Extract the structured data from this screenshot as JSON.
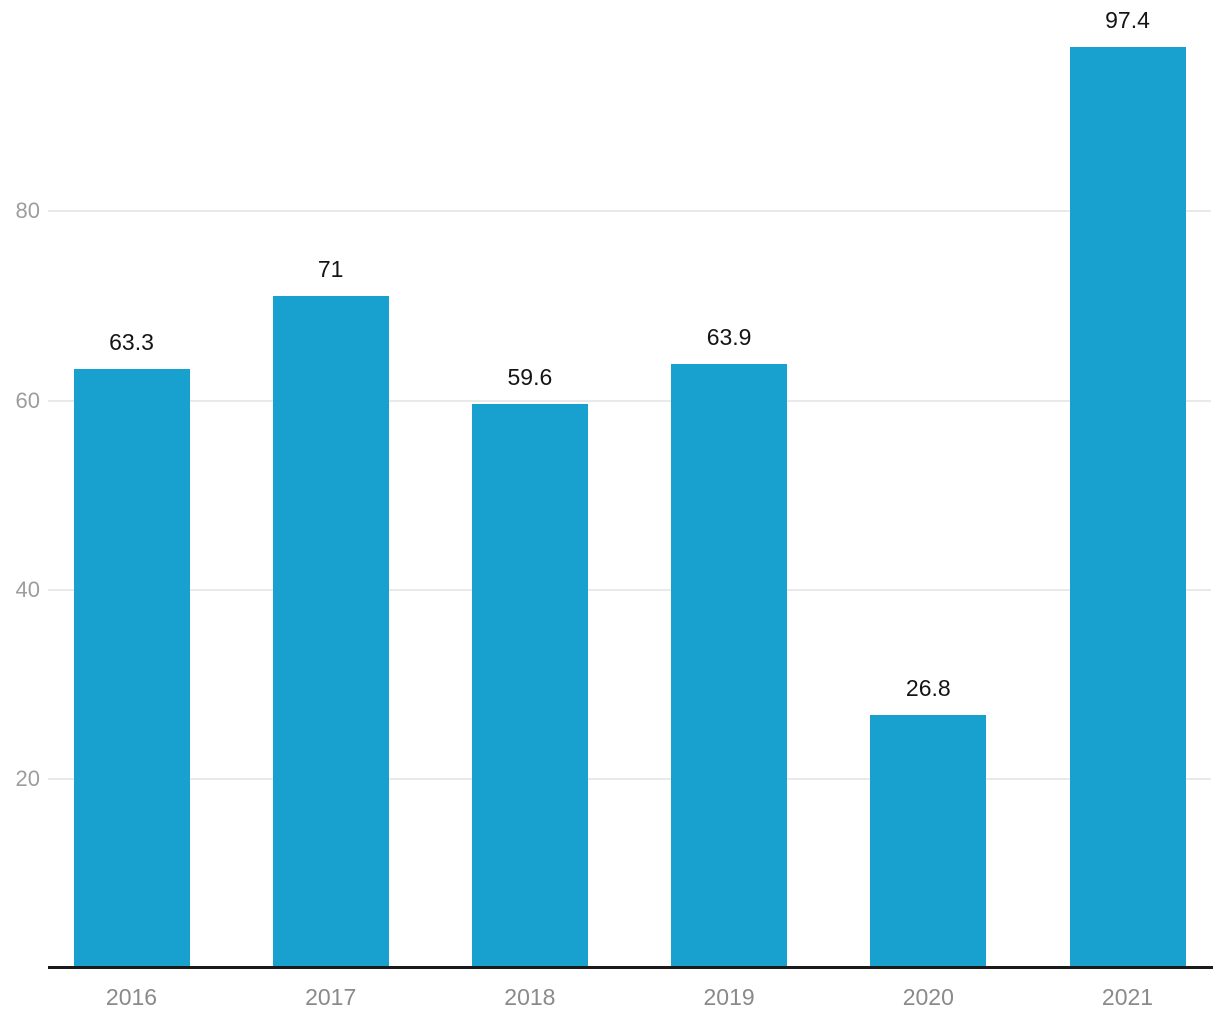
{
  "chart_data": {
    "type": "bar",
    "categories": [
      "2016",
      "2017",
      "2018",
      "2019",
      "2020",
      "2021"
    ],
    "values": [
      63.3,
      71,
      59.6,
      63.9,
      26.8,
      97.4
    ],
    "value_labels": [
      "63.3",
      "71",
      "59.6",
      "63.9",
      "26.8",
      "97.4"
    ],
    "title": "",
    "xlabel": "",
    "ylabel": "",
    "ylim": [
      0,
      102
    ],
    "yticks": [
      20,
      40,
      60,
      80
    ],
    "ytick_labels": [
      "20",
      "40",
      "60",
      "80"
    ],
    "grid": true,
    "legend": false,
    "bar_color": "#18A1CE",
    "gridline_color": "#e9e9e9",
    "axis_line_color": "#1a1a1a",
    "ytick_label_color": "#9d9d9d",
    "xtick_label_color": "#8a8a8a",
    "value_label_color": "#141414",
    "background_color": "#ffffff"
  }
}
